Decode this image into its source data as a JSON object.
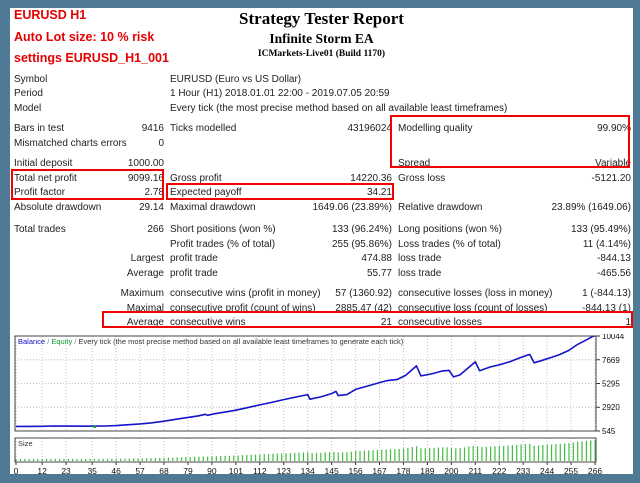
{
  "header": {
    "left_lines": [
      "EURUSD H1",
      "Auto Lot size: 10 % risk",
      "settings EURUSD_H1_001"
    ],
    "title": "Strategy Tester Report",
    "subtitle": "Infinite Storm EA",
    "broker": "ICMarkets-Live01 (Build 1170)"
  },
  "report": {
    "rows": [
      {
        "type": "wide",
        "c1l": "Symbol",
        "wide": "EURUSD (Euro vs US Dollar)"
      },
      {
        "type": "wide",
        "c1l": "Period",
        "wide": "1 Hour (H1) 2018.01.01 22:00 - 2019.07.05 20:59"
      },
      {
        "type": "wide",
        "c1l": "Model",
        "wide": "Every tick (the most precise method based on all available least timeframes)"
      },
      {
        "type": "gap",
        "h": 6
      },
      {
        "c1l": "Bars in test",
        "c1v": "9416",
        "c2l": "Ticks modelled",
        "c2v": "43196024",
        "c3l": "Modelling quality",
        "c3v": "99.90%"
      },
      {
        "c1l": "Mismatched charts errors",
        "c1v": "0",
        "c2l": "",
        "c2v": "",
        "c3l": "",
        "c3v": ""
      },
      {
        "type": "gap",
        "h": 6
      },
      {
        "c1l": "Initial deposit",
        "c1v": "1000.00",
        "c2l": "",
        "c2v": "",
        "c3l": "Spread",
        "c3v": "Variable"
      },
      {
        "c1l": "Total net profit",
        "c1v": "9099.16",
        "c2l": "Gross profit",
        "c2v": "14220.36",
        "c3l": "Gross loss",
        "c3v": "-5121.20"
      },
      {
        "c1l": "Profit factor",
        "c1v": "2.78",
        "c2l": "Expected payoff",
        "c2v": "34.21",
        "c3l": "",
        "c3v": ""
      },
      {
        "c1l": "Absolute drawdown",
        "c1v": "29.14",
        "c2l": "Maximal drawdown",
        "c2v": "1649.06 (23.89%)",
        "c3l": "Relative drawdown",
        "c3v": "23.89% (1649.06)"
      },
      {
        "type": "gap",
        "h": 8
      },
      {
        "c1l": "Total trades",
        "c1v": "266",
        "c2l": "Short positions (won %)",
        "c2v": "133 (96.24%)",
        "c3l": "Long positions (won %)",
        "c3v": "133 (95.49%)"
      },
      {
        "c1l": "",
        "c1v": "",
        "c2l": "Profit trades (% of total)",
        "c2v": "255 (95.86%)",
        "c3l": "Loss trades (% of total)",
        "c3v": "11 (4.14%)"
      },
      {
        "c1l": "",
        "c1v": "Largest",
        "c2l": "profit trade",
        "c2v": "474.88",
        "c3l": "loss trade",
        "c3v": "-844.13"
      },
      {
        "c1l": "",
        "c1v": "Average",
        "c2l": "profit trade",
        "c2v": "55.77",
        "c3l": "loss trade",
        "c3v": "-465.56"
      },
      {
        "type": "gap",
        "h": 6
      },
      {
        "c1l": "",
        "c1v": "Maximum",
        "c2l": "consecutive wins (profit in money)",
        "c2v": "57 (1360.92)",
        "c3l": "consecutive losses (loss in money)",
        "c3v": "1 (-844.13)"
      },
      {
        "c1l": "",
        "c1v": "Maximal",
        "c2l": "consecutive profit (count of wins)",
        "c2v": "2885.47 (42)",
        "c3l": "consecutive loss (count of losses)",
        "c3v": "-844.13 (1)"
      },
      {
        "c1l": "",
        "c1v": "Average",
        "c2l": "consecutive wins",
        "c2v": "21",
        "c3l": "consecutive losses",
        "c3v": "1"
      }
    ]
  },
  "chart_data": {
    "type": "line",
    "legend": {
      "balance_label": "Balance",
      "equity_label": "Equity",
      "separator": " / ",
      "note": "Every tick (the most precise method based on all available least timeframes to generate each tick)"
    },
    "size_panel_label": "Size",
    "xlabel": "",
    "ylabel": "",
    "x_ticks": [
      0,
      12,
      23,
      35,
      46,
      57,
      68,
      79,
      90,
      101,
      112,
      123,
      134,
      145,
      156,
      167,
      178,
      189,
      200,
      211,
      222,
      233,
      244,
      255,
      266
    ],
    "y_ticks": [
      545,
      2920,
      5295,
      7669,
      10044
    ],
    "xlim": [
      0,
      272
    ],
    "ylim": [
      545,
      10044
    ],
    "grid": true,
    "series": [
      {
        "name": "Balance",
        "color": "#1414c8",
        "points": [
          [
            0,
            1000
          ],
          [
            6,
            1005
          ],
          [
            12,
            1012
          ],
          [
            17,
            1045
          ],
          [
            20,
            1030
          ],
          [
            26,
            1035
          ],
          [
            31,
            1028
          ],
          [
            36,
            1030
          ],
          [
            41,
            1045
          ],
          [
            46,
            1080
          ],
          [
            51,
            1160
          ],
          [
            57,
            1255
          ],
          [
            62,
            1350
          ],
          [
            68,
            1520
          ],
          [
            73,
            1700
          ],
          [
            79,
            1900
          ],
          [
            84,
            2060
          ],
          [
            87,
            2210
          ],
          [
            88,
            2110
          ],
          [
            91,
            2260
          ],
          [
            96,
            2430
          ],
          [
            101,
            2620
          ],
          [
            106,
            2860
          ],
          [
            112,
            3150
          ],
          [
            118,
            3430
          ],
          [
            123,
            3680
          ],
          [
            129,
            3950
          ],
          [
            134,
            4180
          ],
          [
            135,
            3720
          ],
          [
            140,
            3950
          ],
          [
            145,
            4280
          ],
          [
            147,
            4500
          ],
          [
            148,
            4080
          ],
          [
            152,
            4180
          ],
          [
            156,
            4700
          ],
          [
            161,
            5000
          ],
          [
            167,
            5380
          ],
          [
            171,
            5600
          ],
          [
            175,
            5680
          ],
          [
            179,
            6100
          ],
          [
            184,
            7050
          ],
          [
            186,
            6050
          ],
          [
            191,
            6250
          ],
          [
            196,
            6550
          ],
          [
            199,
            6600
          ],
          [
            201,
            5950
          ],
          [
            204,
            6150
          ],
          [
            208,
            6900
          ],
          [
            211,
            7450
          ],
          [
            213,
            6570
          ],
          [
            218,
            6950
          ],
          [
            222,
            7150
          ],
          [
            227,
            7480
          ],
          [
            232,
            7900
          ],
          [
            236,
            8200
          ],
          [
            238,
            7360
          ],
          [
            242,
            7620
          ],
          [
            246,
            7900
          ],
          [
            250,
            8200
          ],
          [
            254,
            8600
          ],
          [
            258,
            9200
          ],
          [
            262,
            9650
          ],
          [
            265,
            10000
          ],
          [
            266,
            10044
          ]
        ]
      }
    ],
    "equity_dot": {
      "x": 36,
      "y": 1000,
      "color": "#089b2d"
    },
    "size_bars": {
      "count": 267,
      "color": "#42bb42",
      "note": "lot size grows proportionally with balance"
    },
    "colors": {
      "grid": "#bfbfbf",
      "frame": "#444444",
      "axis_text": "#111111"
    }
  },
  "highlight_color": "#f40000"
}
